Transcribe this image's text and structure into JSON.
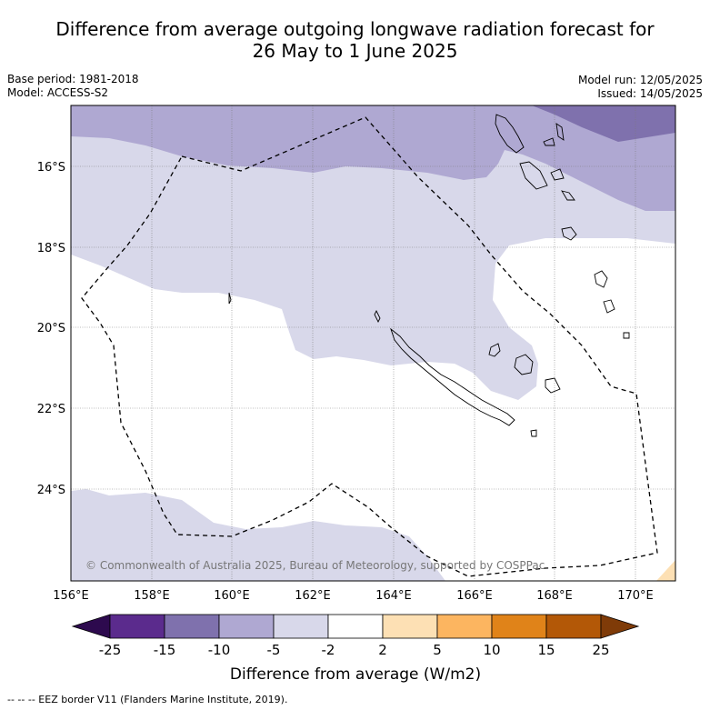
{
  "title_line1": "Difference from average outgoing longwave radiation forecast for",
  "title_line2": "26 May to 1 June 2025",
  "base_period": "Base period: 1981-2018",
  "model": "Model: ACCESS-S2",
  "model_run": "Model run: 12/05/2025",
  "issued": "Issued: 14/05/2025",
  "copyright": "© Commonwealth of Australia 2025, Bureau of Meteorology, supported by COSPPac",
  "lat_labels": [
    "16°S",
    "18°S",
    "20°S",
    "22°S",
    "24°S"
  ],
  "lon_labels": [
    "156°E",
    "158°E",
    "160°E",
    "162°E",
    "164°E",
    "166°E",
    "168°E",
    "170°E"
  ],
  "colorbar": {
    "title": "Difference from average (W/m2)",
    "ticks": [
      "-25",
      "-15",
      "-10",
      "-5",
      "-2",
      "2",
      "5",
      "10",
      "15",
      "25"
    ],
    "colors": [
      "#2d0a4e",
      "#5b2b8d",
      "#7f71ad",
      "#afa8d2",
      "#d8d8ea",
      "#ffffff",
      "#fde0b4",
      "#fcb560",
      "#e08319",
      "#b35807",
      "#7f3b08"
    ]
  },
  "footer": "--  --  -- EEZ border V11 (Flanders Marine Institute, 2019)."
}
